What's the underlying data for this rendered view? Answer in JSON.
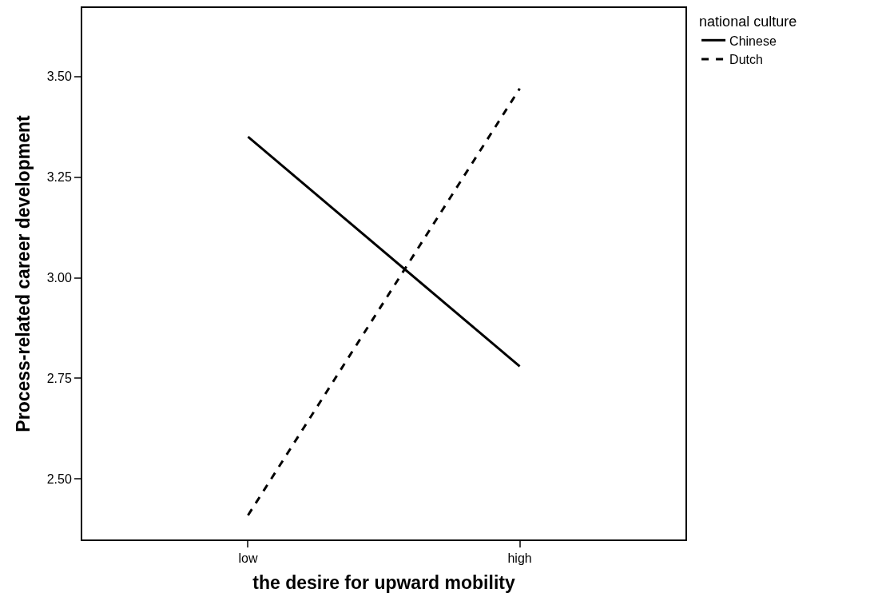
{
  "chart_data": {
    "type": "line",
    "xlabel": "the desire for upward mobility",
    "ylabel": "Process-related career development",
    "legend_title": "national culture",
    "categories": [
      "low",
      "high"
    ],
    "series": [
      {
        "name": "Chinese",
        "color": "#000000",
        "values": [
          3.35,
          2.78
        ],
        "line_style": "solid"
      },
      {
        "name": "Dutch",
        "color": "#000000",
        "values": [
          2.41,
          3.47
        ],
        "line_style": "dashed"
      }
    ],
    "ylim": [
      2.35,
      3.67
    ],
    "yticks": [
      {
        "value": 2.5,
        "label": "2.50"
      },
      {
        "value": 2.75,
        "label": "2.75"
      },
      {
        "value": 3.0,
        "label": "3.00"
      },
      {
        "value": 3.25,
        "label": "3.25"
      },
      {
        "value": 3.5,
        "label": "3.50"
      }
    ],
    "grid": false,
    "legend": "top right",
    "marker": "none"
  }
}
